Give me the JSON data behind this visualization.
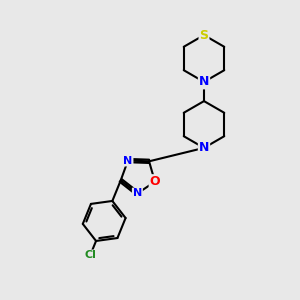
{
  "background_color": "#e8e8e8",
  "bond_color": "#000000",
  "bond_width": 1.5,
  "atom_colors": {
    "S": "#cccc00",
    "N": "#0000ff",
    "O": "#ff0000",
    "C": "#000000",
    "Cl": "#228B22"
  },
  "font_size_atom": 8.5,
  "fig_size": [
    3.0,
    3.0
  ],
  "dpi": 100
}
